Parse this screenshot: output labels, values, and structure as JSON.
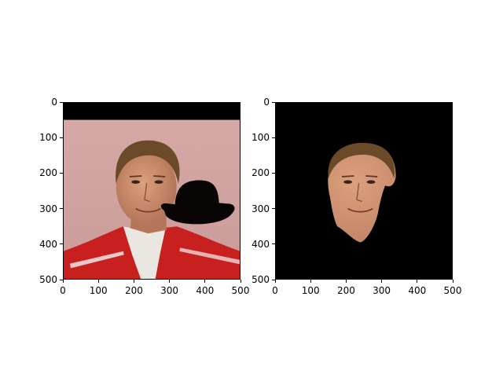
{
  "subplots": [
    {
      "id": "original",
      "xticks": [
        "0",
        "100",
        "200",
        "300",
        "400",
        "500"
      ],
      "yticks": [
        "0",
        "100",
        "200",
        "300",
        "400",
        "500"
      ]
    },
    {
      "id": "masked",
      "xticks": [
        "0",
        "100",
        "200",
        "300",
        "400",
        "500"
      ],
      "yticks": [
        "0",
        "100",
        "200",
        "300",
        "400",
        "500"
      ]
    }
  ],
  "colors": {
    "background": "#d9a8a8",
    "shirt_red": "#c8201e",
    "skin": "#c98a6a",
    "hair": "#6b4a2a",
    "mask": "#0a0505"
  },
  "icons": [
    "bowler-hat-icon"
  ]
}
